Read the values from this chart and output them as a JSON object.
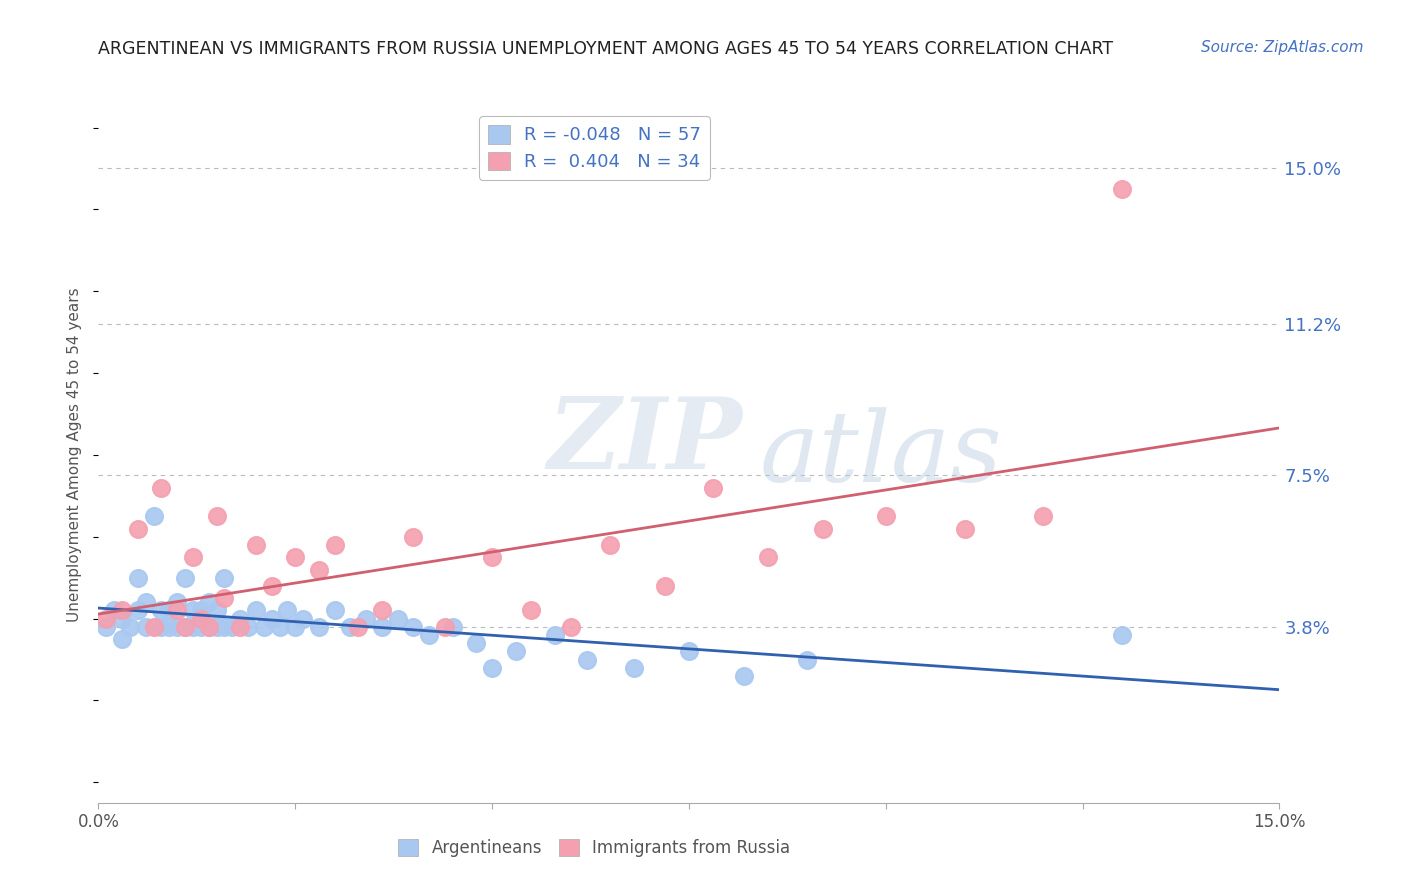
{
  "title": "ARGENTINEAN VS IMMIGRANTS FROM RUSSIA UNEMPLOYMENT AMONG AGES 45 TO 54 YEARS CORRELATION CHART",
  "source": "Source: ZipAtlas.com",
  "ylabel": "Unemployment Among Ages 45 to 54 years",
  "r_argentinean": -0.048,
  "n_argentinean": 57,
  "r_russia": 0.404,
  "n_russia": 34,
  "color_argentinean": "#a8c8f0",
  "color_russia": "#f4a0b0",
  "line_color_argentinean": "#3060b0",
  "line_color_russia": "#d06070",
  "watermark_zip": "ZIP",
  "watermark_atlas": "atlas",
  "xlim": [
    0.0,
    0.15
  ],
  "ylim": [
    -0.005,
    0.165
  ],
  "yticks": [
    0.038,
    0.075,
    0.112,
    0.15
  ],
  "ytick_labels": [
    "3.8%",
    "7.5%",
    "11.2%",
    "15.0%"
  ],
  "arg_x": [
    0.001,
    0.002,
    0.003,
    0.003,
    0.004,
    0.005,
    0.005,
    0.006,
    0.006,
    0.007,
    0.008,
    0.008,
    0.009,
    0.009,
    0.01,
    0.01,
    0.011,
    0.011,
    0.012,
    0.012,
    0.013,
    0.013,
    0.014,
    0.014,
    0.015,
    0.015,
    0.016,
    0.016,
    0.017,
    0.018,
    0.019,
    0.02,
    0.021,
    0.022,
    0.023,
    0.024,
    0.025,
    0.026,
    0.028,
    0.03,
    0.032,
    0.034,
    0.036,
    0.038,
    0.04,
    0.042,
    0.045,
    0.048,
    0.05,
    0.053,
    0.058,
    0.062,
    0.068,
    0.075,
    0.082,
    0.09,
    0.13
  ],
  "arg_y": [
    0.038,
    0.042,
    0.035,
    0.04,
    0.038,
    0.05,
    0.042,
    0.038,
    0.044,
    0.065,
    0.038,
    0.042,
    0.038,
    0.042,
    0.038,
    0.044,
    0.05,
    0.038,
    0.042,
    0.038,
    0.042,
    0.038,
    0.044,
    0.038,
    0.042,
    0.038,
    0.05,
    0.038,
    0.038,
    0.04,
    0.038,
    0.042,
    0.038,
    0.04,
    0.038,
    0.042,
    0.038,
    0.04,
    0.038,
    0.042,
    0.038,
    0.04,
    0.038,
    0.04,
    0.038,
    0.036,
    0.038,
    0.034,
    0.028,
    0.032,
    0.036,
    0.03,
    0.028,
    0.032,
    0.026,
    0.03,
    0.036
  ],
  "rus_x": [
    0.001,
    0.003,
    0.005,
    0.007,
    0.008,
    0.01,
    0.011,
    0.012,
    0.013,
    0.014,
    0.015,
    0.016,
    0.018,
    0.02,
    0.022,
    0.025,
    0.028,
    0.03,
    0.033,
    0.036,
    0.04,
    0.044,
    0.05,
    0.055,
    0.06,
    0.065,
    0.072,
    0.078,
    0.085,
    0.092,
    0.1,
    0.11,
    0.12,
    0.13
  ],
  "rus_y": [
    0.04,
    0.042,
    0.062,
    0.038,
    0.072,
    0.042,
    0.038,
    0.055,
    0.04,
    0.038,
    0.065,
    0.045,
    0.038,
    0.058,
    0.048,
    0.055,
    0.052,
    0.058,
    0.038,
    0.042,
    0.06,
    0.038,
    0.055,
    0.042,
    0.038,
    0.058,
    0.048,
    0.072,
    0.055,
    0.062,
    0.065,
    0.062,
    0.065,
    0.145
  ]
}
